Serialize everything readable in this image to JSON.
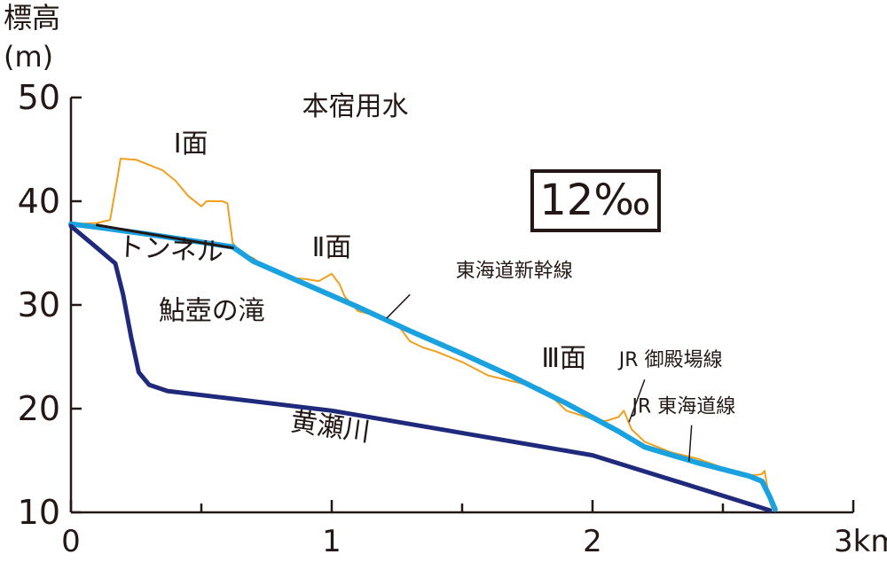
{
  "chart_data": {
    "type": "line",
    "ylabel": "標高",
    "ylabel_unit": "(m)",
    "xunit": "km",
    "xlim": [
      0,
      3
    ],
    "ylim": [
      10,
      50
    ],
    "yticks": [
      10,
      20,
      30,
      40,
      50
    ],
    "xticks": [
      0,
      1,
      2,
      3
    ],
    "xtick_labels": [
      "0",
      "1",
      "2",
      "3km"
    ],
    "grid": false,
    "gradient_box": "12‰",
    "series": [
      {
        "color": "#f0a01e",
        "points": [
          [
            0,
            37.8
          ],
          [
            0.1,
            37.9
          ],
          [
            0.15,
            38.2
          ],
          [
            0.18,
            42.5
          ],
          [
            0.19,
            44.1
          ],
          [
            0.25,
            44.0
          ],
          [
            0.3,
            43.5
          ],
          [
            0.35,
            43.0
          ],
          [
            0.4,
            42.0
          ],
          [
            0.45,
            40.5
          ],
          [
            0.5,
            39.5
          ],
          [
            0.52,
            40.0
          ],
          [
            0.58,
            40.0
          ],
          [
            0.6,
            39.8
          ],
          [
            0.62,
            36.0
          ],
          [
            0.65,
            35.0
          ],
          [
            0.7,
            34.5
          ],
          [
            0.75,
            33.5
          ],
          [
            0.8,
            33.0
          ],
          [
            0.85,
            32.6
          ],
          [
            0.9,
            32.5
          ],
          [
            0.95,
            32.3
          ],
          [
            1.0,
            33.0
          ],
          [
            1.03,
            32.0
          ],
          [
            1.05,
            30.8
          ],
          [
            1.08,
            30.0
          ],
          [
            1.1,
            29.4
          ],
          [
            1.15,
            29.1
          ],
          [
            1.2,
            28.8
          ],
          [
            1.25,
            28.2
          ],
          [
            1.3,
            26.5
          ],
          [
            1.35,
            25.9
          ],
          [
            1.4,
            25.5
          ],
          [
            1.5,
            24.5
          ],
          [
            1.6,
            23.2
          ],
          [
            1.7,
            22.6
          ],
          [
            1.8,
            22.0
          ],
          [
            1.85,
            21.0
          ],
          [
            1.9,
            19.8
          ],
          [
            2.0,
            19.0
          ],
          [
            2.05,
            18.8
          ],
          [
            2.1,
            19.2
          ],
          [
            2.12,
            19.8
          ],
          [
            2.15,
            18.0
          ],
          [
            2.2,
            16.8
          ],
          [
            2.3,
            15.8
          ],
          [
            2.4,
            15.2
          ],
          [
            2.5,
            14.3
          ],
          [
            2.6,
            13.6
          ],
          [
            2.63,
            13.6
          ],
          [
            2.65,
            13.7
          ],
          [
            2.66,
            14.0
          ],
          [
            2.67,
            12.5
          ],
          [
            2.68,
            11.0
          ],
          [
            2.69,
            10.3
          ]
        ]
      },
      {
        "color": "#1aa1e0",
        "points": [
          [
            0,
            37.8
          ],
          [
            0.1,
            37.5
          ],
          [
            0.3,
            36.8
          ],
          [
            0.62,
            35.6
          ],
          [
            0.7,
            34.2
          ],
          [
            0.9,
            32.0
          ],
          [
            1.1,
            29.8
          ],
          [
            1.3,
            27.5
          ],
          [
            1.5,
            25.3
          ],
          [
            1.7,
            23.0
          ],
          [
            1.9,
            20.5
          ],
          [
            2.1,
            17.8
          ],
          [
            2.2,
            16.3
          ],
          [
            2.4,
            14.8
          ],
          [
            2.6,
            13.5
          ],
          [
            2.65,
            13.0
          ],
          [
            2.68,
            11.5
          ],
          [
            2.7,
            10.3
          ]
        ]
      },
      {
        "color": "#231815",
        "points": [
          [
            0.1,
            37.7
          ],
          [
            0.62,
            35.5
          ]
        ]
      },
      {
        "color": "#1f2a7c",
        "points": [
          [
            0,
            37.6
          ],
          [
            0.1,
            35.5
          ],
          [
            0.17,
            34.0
          ],
          [
            0.2,
            31.0
          ],
          [
            0.23,
            27.0
          ],
          [
            0.26,
            23.5
          ],
          [
            0.3,
            22.3
          ],
          [
            0.37,
            21.7
          ],
          [
            1.0,
            19.8
          ],
          [
            2.0,
            15.5
          ],
          [
            2.68,
            10.2
          ]
        ]
      }
    ],
    "annotations": [
      {
        "text": "Ⅰ面",
        "x": 0.46,
        "y": 44.7,
        "size": "mid"
      },
      {
        "text": "本宿用水",
        "x": 1.09,
        "y": 48.3,
        "size": "mid"
      },
      {
        "text": "Ⅱ面",
        "x": 1.0,
        "y": 34.7,
        "size": "mid"
      },
      {
        "text": "トンネル",
        "x": 0.38,
        "y": 34.5,
        "size": "mid"
      },
      {
        "text": "鮎壺の滝",
        "x": 0.54,
        "y": 28.6,
        "size": "mid"
      },
      {
        "text": "東海道新幹線",
        "x": 1.7,
        "y": 32.7,
        "size": "small"
      },
      {
        "text": "Ⅲ面",
        "x": 1.89,
        "y": 24.0,
        "size": "mid"
      },
      {
        "text": "JR 御殿場線",
        "x": 2.3,
        "y": 24.1,
        "size": "small"
      },
      {
        "text": "JR 東海道線",
        "x": 2.35,
        "y": 19.6,
        "size": "small"
      },
      {
        "text": "黄瀬川",
        "x": 0.99,
        "y": 17.4,
        "size": "mid"
      }
    ]
  }
}
